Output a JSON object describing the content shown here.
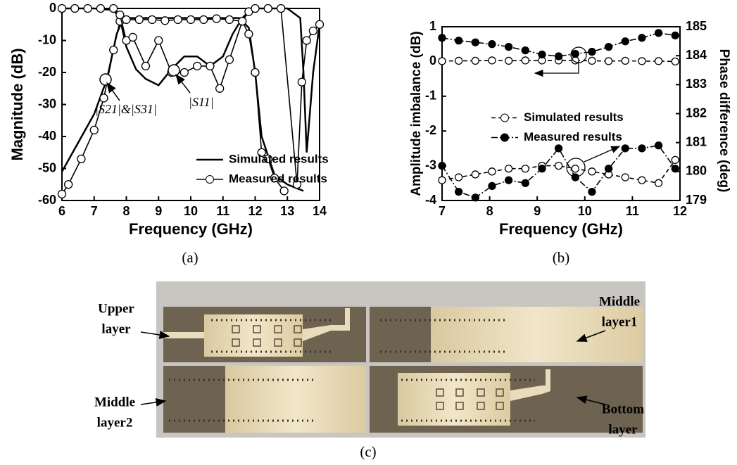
{
  "chart_data": [
    {
      "type": "line",
      "caption": "(a)",
      "xlabel": "Frequency (GHz)",
      "ylabel": "Magnitude (dB)",
      "xlim": [
        6,
        14
      ],
      "xticks": [
        6,
        7,
        8,
        9,
        10,
        11,
        12,
        13,
        14
      ],
      "ylim": [
        -60,
        0
      ],
      "yticks": [
        0,
        -10,
        -20,
        -30,
        -40,
        -50,
        -60
      ],
      "legend": "lower right",
      "annotations": [
        "|S21|&|S31|",
        "|S11|"
      ],
      "series": [
        {
          "name": "Simulated results",
          "color": "#000000",
          "marker": "none",
          "linestyle": "solid",
          "curves": [
            {
              "x": [
                6,
                6.5,
                7,
                7.4,
                7.7,
                7.9,
                8.2,
                9,
                10,
                11,
                11.5,
                11.8,
                12,
                12.2,
                12.6,
                13,
                13.5
              ],
              "values": [
                -51,
                -42,
                -33,
                -22,
                -8,
                -3,
                -3,
                -3,
                -3,
                -3,
                -3,
                -6,
                -20,
                -40,
                -52,
                -55,
                -57
              ]
            },
            {
              "x": [
                6,
                7,
                7.6,
                7.8,
                8,
                8.3,
                8.6,
                9,
                9.4,
                9.8,
                10.2,
                10.6,
                11,
                11.3,
                11.6,
                11.8,
                12,
                12.5,
                13,
                13.4,
                13.5,
                13.6,
                13.8,
                14
              ],
              "values": [
                0,
                0,
                -0.5,
                -3,
                -12,
                -19,
                -22,
                -24,
                -19,
                -15,
                -15,
                -18,
                -15,
                -8,
                -3,
                -1,
                0,
                0,
                0,
                -3,
                -20,
                -45,
                -20,
                -5
              ]
            }
          ]
        },
        {
          "name": "Measured results",
          "color": "#000000",
          "marker": "open",
          "linestyle": "solid",
          "curves": [
            {
              "x": [
                6.0,
                6.2,
                6.6,
                7.0,
                7.3,
                7.6,
                7.8,
                8.0,
                8.4,
                8.8,
                9.2,
                9.6,
                10.0,
                10.4,
                10.8,
                11.2,
                11.6,
                11.8,
                12.0,
                12.2,
                12.4,
                12.6,
                12.9
              ],
              "values": [
                -58,
                -55,
                -47,
                -38,
                -28,
                -13,
                -4,
                -3.5,
                -3.5,
                -3.5,
                -3.8,
                -3.5,
                -3.5,
                -3.5,
                -3.2,
                -3.5,
                -4,
                -8,
                -20,
                -45,
                -47,
                -53,
                -57
              ]
            },
            {
              "x": [
                6.0,
                6.4,
                6.8,
                7.2,
                7.6,
                7.8,
                8.0,
                8.2,
                8.6,
                9.0,
                9.4,
                9.8,
                10.2,
                10.6,
                10.9,
                11.2,
                11.6,
                11.8,
                12.0,
                12.4,
                12.8,
                13.3,
                13.45,
                13.6,
                13.8,
                14.0
              ],
              "values": [
                0,
                0,
                0,
                0,
                0,
                -2,
                -10,
                -9,
                -18,
                -10,
                -20,
                -20,
                -18,
                -18,
                -25,
                -16,
                -4,
                -1,
                0,
                0,
                0,
                -55,
                -23,
                -10,
                -7,
                -5
              ]
            }
          ]
        }
      ]
    },
    {
      "type": "line",
      "caption": "(b)",
      "xlabel": "Frequency (GHz)",
      "ylabel": "Amplitude imbalance (dB)",
      "y2label": "Phase difference (deg)",
      "xlim": [
        7,
        12
      ],
      "xticks": [
        7,
        8,
        9,
        10,
        11,
        12
      ],
      "ylim": [
        -4,
        1
      ],
      "yticks": [
        1,
        0,
        -1,
        -2,
        -3,
        -4
      ],
      "y2lim": [
        179,
        185
      ],
      "y2ticks": [
        185,
        184,
        183,
        182,
        181,
        180,
        179
      ],
      "legend": "center",
      "series": [
        {
          "name": "Simulated results",
          "color": "#000000",
          "marker": "open",
          "linestyle": "dashed",
          "curves": [
            {
              "x": [
                7,
                7.35,
                7.7,
                8.05,
                8.4,
                8.75,
                9.1,
                9.45,
                9.8,
                10.15,
                10.5,
                10.85,
                11.2,
                11.55,
                11.9
              ],
              "values": [
                0.01,
                0.02,
                0.02,
                0.03,
                0.02,
                0.03,
                0.03,
                0.03,
                0.03,
                0.02,
                0.01,
                0.02,
                0.01,
                0.01,
                0
              ]
            },
            {
              "axis": "y2",
              "x": [
                7,
                7.35,
                7.7,
                8.05,
                8.4,
                8.75,
                9.1,
                9.45,
                9.8,
                10.15,
                10.5,
                10.85,
                11.2,
                11.55,
                11.9
              ],
              "values": [
                179.7,
                179.8,
                179.9,
                180.0,
                180.1,
                180.1,
                180.2,
                180.2,
                180.1,
                180.0,
                179.9,
                179.8,
                179.7,
                179.6,
                180.4
              ]
            }
          ]
        },
        {
          "name": "Measured results",
          "color": "#000000",
          "marker": "filled",
          "linestyle": "dashdot",
          "curves": [
            {
              "x": [
                7,
                7.35,
                7.7,
                8.05,
                8.4,
                8.75,
                9.1,
                9.45,
                9.8,
                10.15,
                10.5,
                10.85,
                11.2,
                11.55,
                11.9
              ],
              "values": [
                0.68,
                0.6,
                0.55,
                0.5,
                0.42,
                0.32,
                0.2,
                0.15,
                0.22,
                0.28,
                0.42,
                0.58,
                0.68,
                0.82,
                0.75
              ]
            },
            {
              "axis": "y2",
              "x": [
                7,
                7.35,
                7.7,
                8.05,
                8.4,
                8.75,
                9.1,
                9.45,
                9.8,
                10.15,
                10.5,
                10.85,
                11.2,
                11.55,
                11.9
              ],
              "values": [
                180.2,
                179.3,
                179.1,
                179.5,
                179.7,
                179.6,
                180.1,
                180.8,
                179.8,
                179.3,
                180.1,
                180.8,
                180.8,
                180.9,
                180.1
              ]
            }
          ]
        }
      ]
    }
  ],
  "photo": {
    "caption": "(c)",
    "labels": [
      {
        "lines": [
          "Upper",
          "layer"
        ]
      },
      {
        "lines": [
          "Middle",
          "layer1"
        ]
      },
      {
        "lines": [
          "Middle",
          "layer2"
        ]
      },
      {
        "lines": [
          "Bottom",
          "layer"
        ]
      }
    ]
  }
}
